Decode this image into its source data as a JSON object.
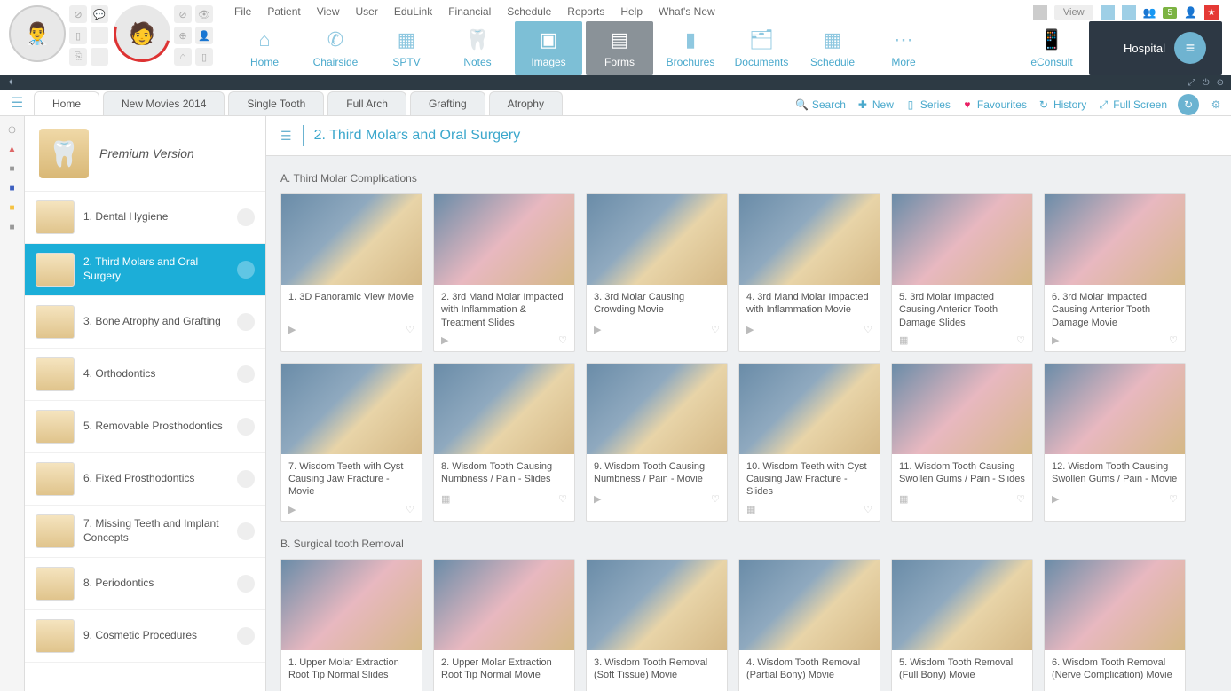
{
  "colors": {
    "accent": "#1caed8",
    "accent_light": "#6bb3d1",
    "ribbon_text": "#4aa9cc",
    "darkstrip": "#2d3a44",
    "hospital_bg": "#2d3844",
    "fav_heart": "#e91e63",
    "badge_green": "#7cb342",
    "star_red": "#e53935"
  },
  "menubar": {
    "items": [
      "File",
      "Patient",
      "View",
      "User",
      "EduLink",
      "Financial",
      "Schedule",
      "Reports",
      "Help",
      "What's New"
    ],
    "right": {
      "view_label": "View",
      "badge_count": "5"
    }
  },
  "ribbon": [
    {
      "label": "Home",
      "icon": "⌂",
      "state": "normal"
    },
    {
      "label": "Chairside",
      "icon": "✆",
      "state": "normal"
    },
    {
      "label": "SPTV",
      "icon": "▦",
      "state": "normal"
    },
    {
      "label": "Notes",
      "icon": "🦷",
      "state": "normal"
    },
    {
      "label": "Images",
      "icon": "▣",
      "state": "active"
    },
    {
      "label": "Forms",
      "icon": "▤",
      "state": "dark"
    },
    {
      "label": "Brochures",
      "icon": "▮",
      "state": "normal"
    },
    {
      "label": "Documents",
      "icon": "🗂",
      "state": "normal"
    },
    {
      "label": "Schedule",
      "icon": "▦",
      "state": "normal"
    },
    {
      "label": "More",
      "icon": "⋯",
      "state": "normal"
    },
    {
      "label": "eConsult",
      "icon": "📱",
      "state": "normal"
    }
  ],
  "hospital_label": "Hospital",
  "tabs": [
    "Home",
    "New Movies 2014",
    "Single Tooth",
    "Full Arch",
    "Grafting",
    "Atrophy"
  ],
  "tab_active_index": 0,
  "tools": [
    {
      "key": "search",
      "label": "Search",
      "icon": "🔍"
    },
    {
      "key": "new",
      "label": "New",
      "icon": "✚"
    },
    {
      "key": "series",
      "label": "Series",
      "icon": "▯"
    },
    {
      "key": "favourites",
      "label": "Favourites",
      "icon": "♥",
      "fav": true
    },
    {
      "key": "history",
      "label": "History",
      "icon": "↻"
    },
    {
      "key": "fullscreen",
      "label": "Full Screen",
      "icon": "⤢"
    }
  ],
  "sidebar": {
    "header_label": "Premium Version",
    "active_index": 1,
    "categories": [
      {
        "label": "1. Dental Hygiene"
      },
      {
        "label": "2. Third Molars and Oral Surgery"
      },
      {
        "label": "3. Bone Atrophy and Grafting"
      },
      {
        "label": "4. Orthodontics"
      },
      {
        "label": "5. Removable Prosthodontics"
      },
      {
        "label": "6. Fixed Prosthodontics"
      },
      {
        "label": "7. Missing Teeth and Implant Concepts"
      },
      {
        "label": "8. Periodontics"
      },
      {
        "label": "9. Cosmetic Procedures"
      }
    ]
  },
  "content": {
    "title": "2. Third Molars and Oral Surgery",
    "sections": [
      {
        "title": "A. Third Molar Complications",
        "cards": [
          {
            "title": "1. 3D Panoramic View Movie",
            "type": "▶"
          },
          {
            "title": "2. 3rd Mand Molar Impacted with Inflammation & Treatment Slides",
            "type": "▶",
            "pink": true
          },
          {
            "title": "3. 3rd Molar Causing Crowding Movie",
            "type": "▶"
          },
          {
            "title": "4. 3rd Mand Molar Impacted with Inflammation Movie",
            "type": "▶"
          },
          {
            "title": "5. 3rd Molar Impacted Causing Anterior Tooth Damage Slides",
            "type": "▦",
            "pink": true
          },
          {
            "title": "6. 3rd Molar Impacted Causing Anterior Tooth Damage Movie",
            "type": "▶",
            "pink": true
          },
          {
            "title": "7. Wisdom Teeth with Cyst Causing Jaw Fracture - Movie",
            "type": "▶"
          },
          {
            "title": "8. Wisdom Tooth Causing Numbness / Pain - Slides",
            "type": "▦"
          },
          {
            "title": "9. Wisdom Tooth Causing Numbness / Pain - Movie",
            "type": "▶"
          },
          {
            "title": "10. Wisdom Teeth with Cyst Causing Jaw Fracture - Slides",
            "type": "▦"
          },
          {
            "title": "11. Wisdom Tooth Causing Swollen Gums / Pain - Slides",
            "type": "▦",
            "pink": true
          },
          {
            "title": "12. Wisdom Tooth Causing Swollen Gums / Pain - Movie",
            "type": "▶",
            "pink": true
          }
        ]
      },
      {
        "title": "B. Surgical tooth Removal",
        "cards": [
          {
            "title": "1. Upper Molar Extraction Root Tip Normal Slides",
            "type": "▦",
            "pink": true
          },
          {
            "title": "2. Upper Molar Extraction Root Tip Normal Movie",
            "type": "▶",
            "pink": true
          },
          {
            "title": "3. Wisdom Tooth Removal (Soft Tissue) Movie",
            "type": "▶"
          },
          {
            "title": "4. Wisdom Tooth Removal (Partial Bony) Movie",
            "type": "▶"
          },
          {
            "title": "5. Wisdom Tooth Removal (Full Bony) Movie",
            "type": "▶"
          },
          {
            "title": "6. Wisdom Tooth Removal (Nerve Complication) Movie",
            "type": "▶",
            "pink": true
          }
        ]
      }
    ]
  },
  "leftrail_dots": [
    {
      "glyph": "◷",
      "color": "#999"
    },
    {
      "glyph": "▲",
      "color": "#d66"
    },
    {
      "glyph": "■",
      "color": "#999"
    },
    {
      "glyph": "■",
      "color": "#3d5fbf"
    },
    {
      "glyph": "■",
      "color": "#f5c242"
    },
    {
      "glyph": "■",
      "color": "#999"
    }
  ]
}
